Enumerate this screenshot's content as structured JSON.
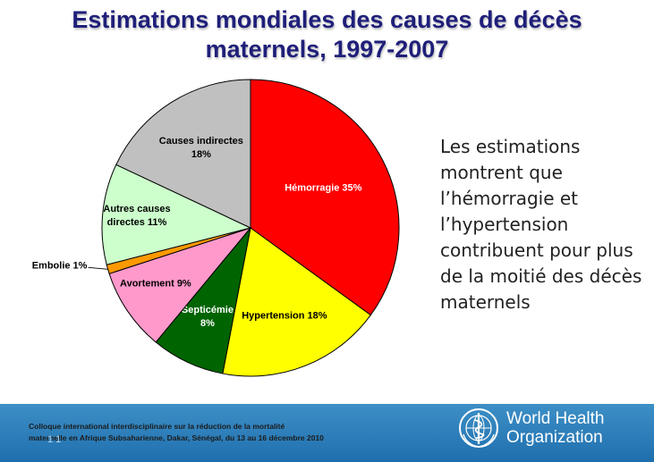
{
  "title": {
    "line1": "Estimations mondiales des causes de décès",
    "line2": "maternels, 1997-2007"
  },
  "side_text": "Les estimations montrent que l’hémorragie et l’hypertension contribuent pour plus de la moitié des décès maternels",
  "footer": {
    "text": "Colloque international interdisciplinaire sur la réduction de la mortalité maternelle en Afrique Subsaharienne, Dakar, Sénégal, du 13 au 16 décembre 2010",
    "page_number": "1 1",
    "org_line1": "World Health",
    "org_line2": "Organization"
  },
  "chart_data": {
    "type": "pie",
    "title": "",
    "slices": [
      {
        "label": "Hémorragie",
        "value": 35,
        "display": [
          "Hémorragie 35%"
        ],
        "color": "#ff0000",
        "text_color": "#ffffff"
      },
      {
        "label": "Hypertension",
        "value": 18,
        "display": [
          "Hypertension 18%"
        ],
        "color": "#ffff00",
        "text_color": "#000000"
      },
      {
        "label": "Septicémie",
        "value": 8,
        "display": [
          "Septicémie",
          "8%"
        ],
        "color": "#006400",
        "text_color": "#ffffff"
      },
      {
        "label": "Avortement",
        "value": 9,
        "display": [
          "Avortement 9%"
        ],
        "color": "#ff99cc",
        "text_color": "#000000"
      },
      {
        "label": "Embolie",
        "value": 1,
        "display": [
          "Embolie 1%"
        ],
        "color": "#ff9900",
        "text_color": "#000000",
        "outside": true
      },
      {
        "label": "Autres causes directes",
        "value": 11,
        "display": [
          "Autres causes",
          "directes 11%"
        ],
        "color": "#ccffcc",
        "text_color": "#000000"
      },
      {
        "label": "Causes indirectes",
        "value": 18,
        "display": [
          "Causes indirectes",
          "18%"
        ],
        "color": "#c0c0c0",
        "text_color": "#000000"
      }
    ]
  }
}
